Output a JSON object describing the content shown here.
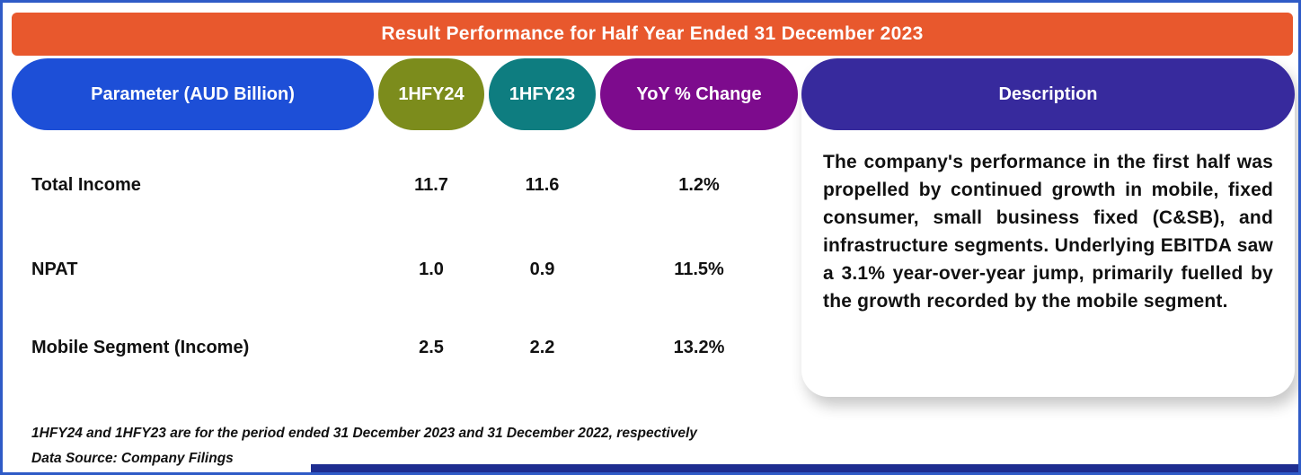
{
  "banner": {
    "title": "Result Performance for Half Year Ended 31 December 2023"
  },
  "colors": {
    "banner_bg": "#E8582D",
    "parameter_header_bg": "#1D4FD7",
    "hfy24_header_bg": "#7C8C1C",
    "hfy23_header_bg": "#0E7D80",
    "yoy_header_bg": "#7D0B8D",
    "description_header_bg": "#372A9D",
    "page_border": "#2F5BC7",
    "bottom_bar_bg": "#1E2D90",
    "text_dark": "#111111"
  },
  "table": {
    "columns": [
      {
        "label": "Parameter (AUD Billion)"
      },
      {
        "label": "1HFY24"
      },
      {
        "label": "1HFY23"
      },
      {
        "label": "YoY % Change"
      }
    ],
    "rows": [
      {
        "parameter": "Total Income",
        "hfy24": "11.7",
        "hfy23": "11.6",
        "yoy": "1.2%"
      },
      {
        "parameter": "NPAT",
        "hfy24": "1.0",
        "hfy23": "0.9",
        "yoy": "11.5%"
      },
      {
        "parameter": "Mobile Segment (Income)",
        "hfy24": "2.5",
        "hfy23": "2.2",
        "yoy": "13.2%"
      }
    ]
  },
  "description": {
    "header": "Description",
    "body": "The company's performance in the first half was propelled by continued growth in mobile, fixed consumer, small business fixed (C&SB), and infrastructure segments. Underlying EBITDA saw a 3.1% year-over-year jump, primarily fuelled by the growth recorded by the mobile segment."
  },
  "footnotes": [
    "1HFY24 and 1HFY23 are for the period ended 31 December 2023 and 31 December 2022, respectively",
    "Data Source: Company Filings"
  ],
  "chart_data": {
    "type": "table",
    "title": "Result Performance for Half Year Ended 31 December 2023",
    "columns": [
      "Parameter (AUD Billion)",
      "1HFY24",
      "1HFY23",
      "YoY % Change"
    ],
    "rows": [
      [
        "Total Income",
        11.7,
        11.6,
        "1.2%"
      ],
      [
        "NPAT",
        1.0,
        0.9,
        "11.5%"
      ],
      [
        "Mobile Segment (Income)",
        2.5,
        2.2,
        "13.2%"
      ]
    ],
    "notes": "Values in AUD Billion; 1HFY24 ended 31 December 2023, 1HFY23 ended 31 December 2022"
  }
}
